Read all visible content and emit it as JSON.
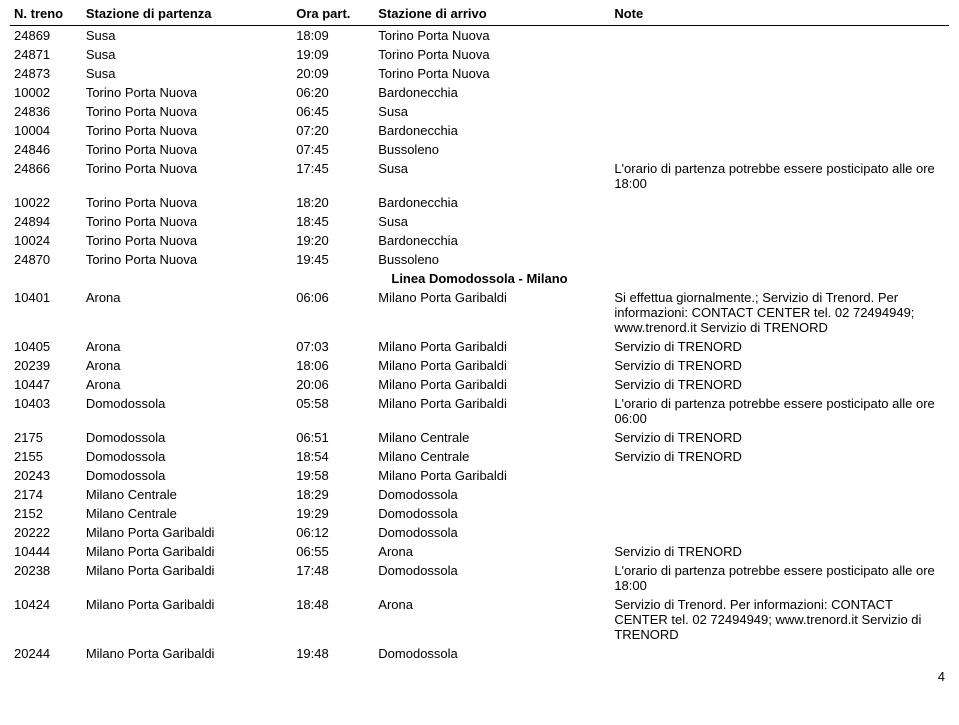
{
  "columns": {
    "treno": "N. treno",
    "part": "Stazione di partenza",
    "ora": "Ora part.",
    "arrivo": "Stazione di arrivo",
    "note": "Note"
  },
  "rows": [
    {
      "treno": "24869",
      "part": "Susa",
      "ora": "18:09",
      "arrivo": "Torino Porta Nuova",
      "note": ""
    },
    {
      "treno": "24871",
      "part": "Susa",
      "ora": "19:09",
      "arrivo": "Torino Porta Nuova",
      "note": ""
    },
    {
      "treno": "24873",
      "part": "Susa",
      "ora": "20:09",
      "arrivo": "Torino Porta Nuova",
      "note": ""
    },
    {
      "treno": "10002",
      "part": "Torino Porta Nuova",
      "ora": "06:20",
      "arrivo": "Bardonecchia",
      "note": ""
    },
    {
      "treno": "24836",
      "part": "Torino Porta Nuova",
      "ora": "06:45",
      "arrivo": "Susa",
      "note": ""
    },
    {
      "treno": "10004",
      "part": "Torino Porta Nuova",
      "ora": "07:20",
      "arrivo": "Bardonecchia",
      "note": ""
    },
    {
      "treno": "24846",
      "part": "Torino Porta Nuova",
      "ora": "07:45",
      "arrivo": "Bussoleno",
      "note": ""
    },
    {
      "treno": "24866",
      "part": "Torino Porta Nuova",
      "ora": "17:45",
      "arrivo": "Susa",
      "note": "L'orario di partenza potrebbe essere posticipato alle ore 18:00"
    },
    {
      "treno": "10022",
      "part": "Torino Porta Nuova",
      "ora": "18:20",
      "arrivo": "Bardonecchia",
      "note": ""
    },
    {
      "treno": "24894",
      "part": "Torino Porta Nuova",
      "ora": "18:45",
      "arrivo": "Susa",
      "note": ""
    },
    {
      "treno": "10024",
      "part": "Torino Porta Nuova",
      "ora": "19:20",
      "arrivo": "Bardonecchia",
      "note": ""
    },
    {
      "treno": "24870",
      "part": "Torino Porta Nuova",
      "ora": "19:45",
      "arrivo": "Bussoleno",
      "note": ""
    },
    {
      "section": "Linea Domodossola - Milano"
    },
    {
      "treno": "10401",
      "part": "Arona",
      "ora": "06:06",
      "arrivo": "Milano Porta Garibaldi",
      "note": "Si effettua giornalmente.; Servizio di Trenord. Per informazioni: CONTACT CENTER tel. 02 72494949; www.trenord.it Servizio di TRENORD"
    },
    {
      "treno": "10405",
      "part": "Arona",
      "ora": "07:03",
      "arrivo": "Milano Porta Garibaldi",
      "note": "Servizio di TRENORD"
    },
    {
      "treno": "20239",
      "part": "Arona",
      "ora": "18:06",
      "arrivo": "Milano Porta Garibaldi",
      "note": "Servizio di TRENORD"
    },
    {
      "treno": "10447",
      "part": "Arona",
      "ora": "20:06",
      "arrivo": "Milano Porta Garibaldi",
      "note": "Servizio di TRENORD"
    },
    {
      "treno": "10403",
      "part": "Domodossola",
      "ora": "05:58",
      "arrivo": "Milano Porta Garibaldi",
      "note": "L'orario di partenza potrebbe essere posticipato alle ore 06:00"
    },
    {
      "treno": "2175",
      "part": "Domodossola",
      "ora": "06:51",
      "arrivo": "Milano Centrale",
      "note": "Servizio di TRENORD"
    },
    {
      "treno": "2155",
      "part": "Domodossola",
      "ora": "18:54",
      "arrivo": "Milano Centrale",
      "note": "Servizio di TRENORD"
    },
    {
      "treno": "20243",
      "part": "Domodossola",
      "ora": "19:58",
      "arrivo": "Milano Porta Garibaldi",
      "note": ""
    },
    {
      "treno": "2174",
      "part": "Milano Centrale",
      "ora": "18:29",
      "arrivo": "Domodossola",
      "note": ""
    },
    {
      "treno": "2152",
      "part": "Milano Centrale",
      "ora": "19:29",
      "arrivo": "Domodossola",
      "note": ""
    },
    {
      "treno": "20222",
      "part": "Milano Porta Garibaldi",
      "ora": "06:12",
      "arrivo": "Domodossola",
      "note": ""
    },
    {
      "treno": "10444",
      "part": "Milano Porta Garibaldi",
      "ora": "06:55",
      "arrivo": "Arona",
      "note": "Servizio di TRENORD"
    },
    {
      "treno": "20238",
      "part": "Milano Porta Garibaldi",
      "ora": "17:48",
      "arrivo": "Domodossola",
      "note": "L'orario di partenza potrebbe essere posticipato alle ore 18:00"
    },
    {
      "treno": "10424",
      "part": "Milano Porta Garibaldi",
      "ora": "18:48",
      "arrivo": "Arona",
      "note": "Servizio di Trenord. Per informazioni: CONTACT CENTER tel. 02 72494949; www.trenord.it Servizio di TRENORD"
    },
    {
      "treno": "20244",
      "part": "Milano Porta Garibaldi",
      "ora": "19:48",
      "arrivo": "Domodossola",
      "note": ""
    }
  ],
  "page_number": "4"
}
